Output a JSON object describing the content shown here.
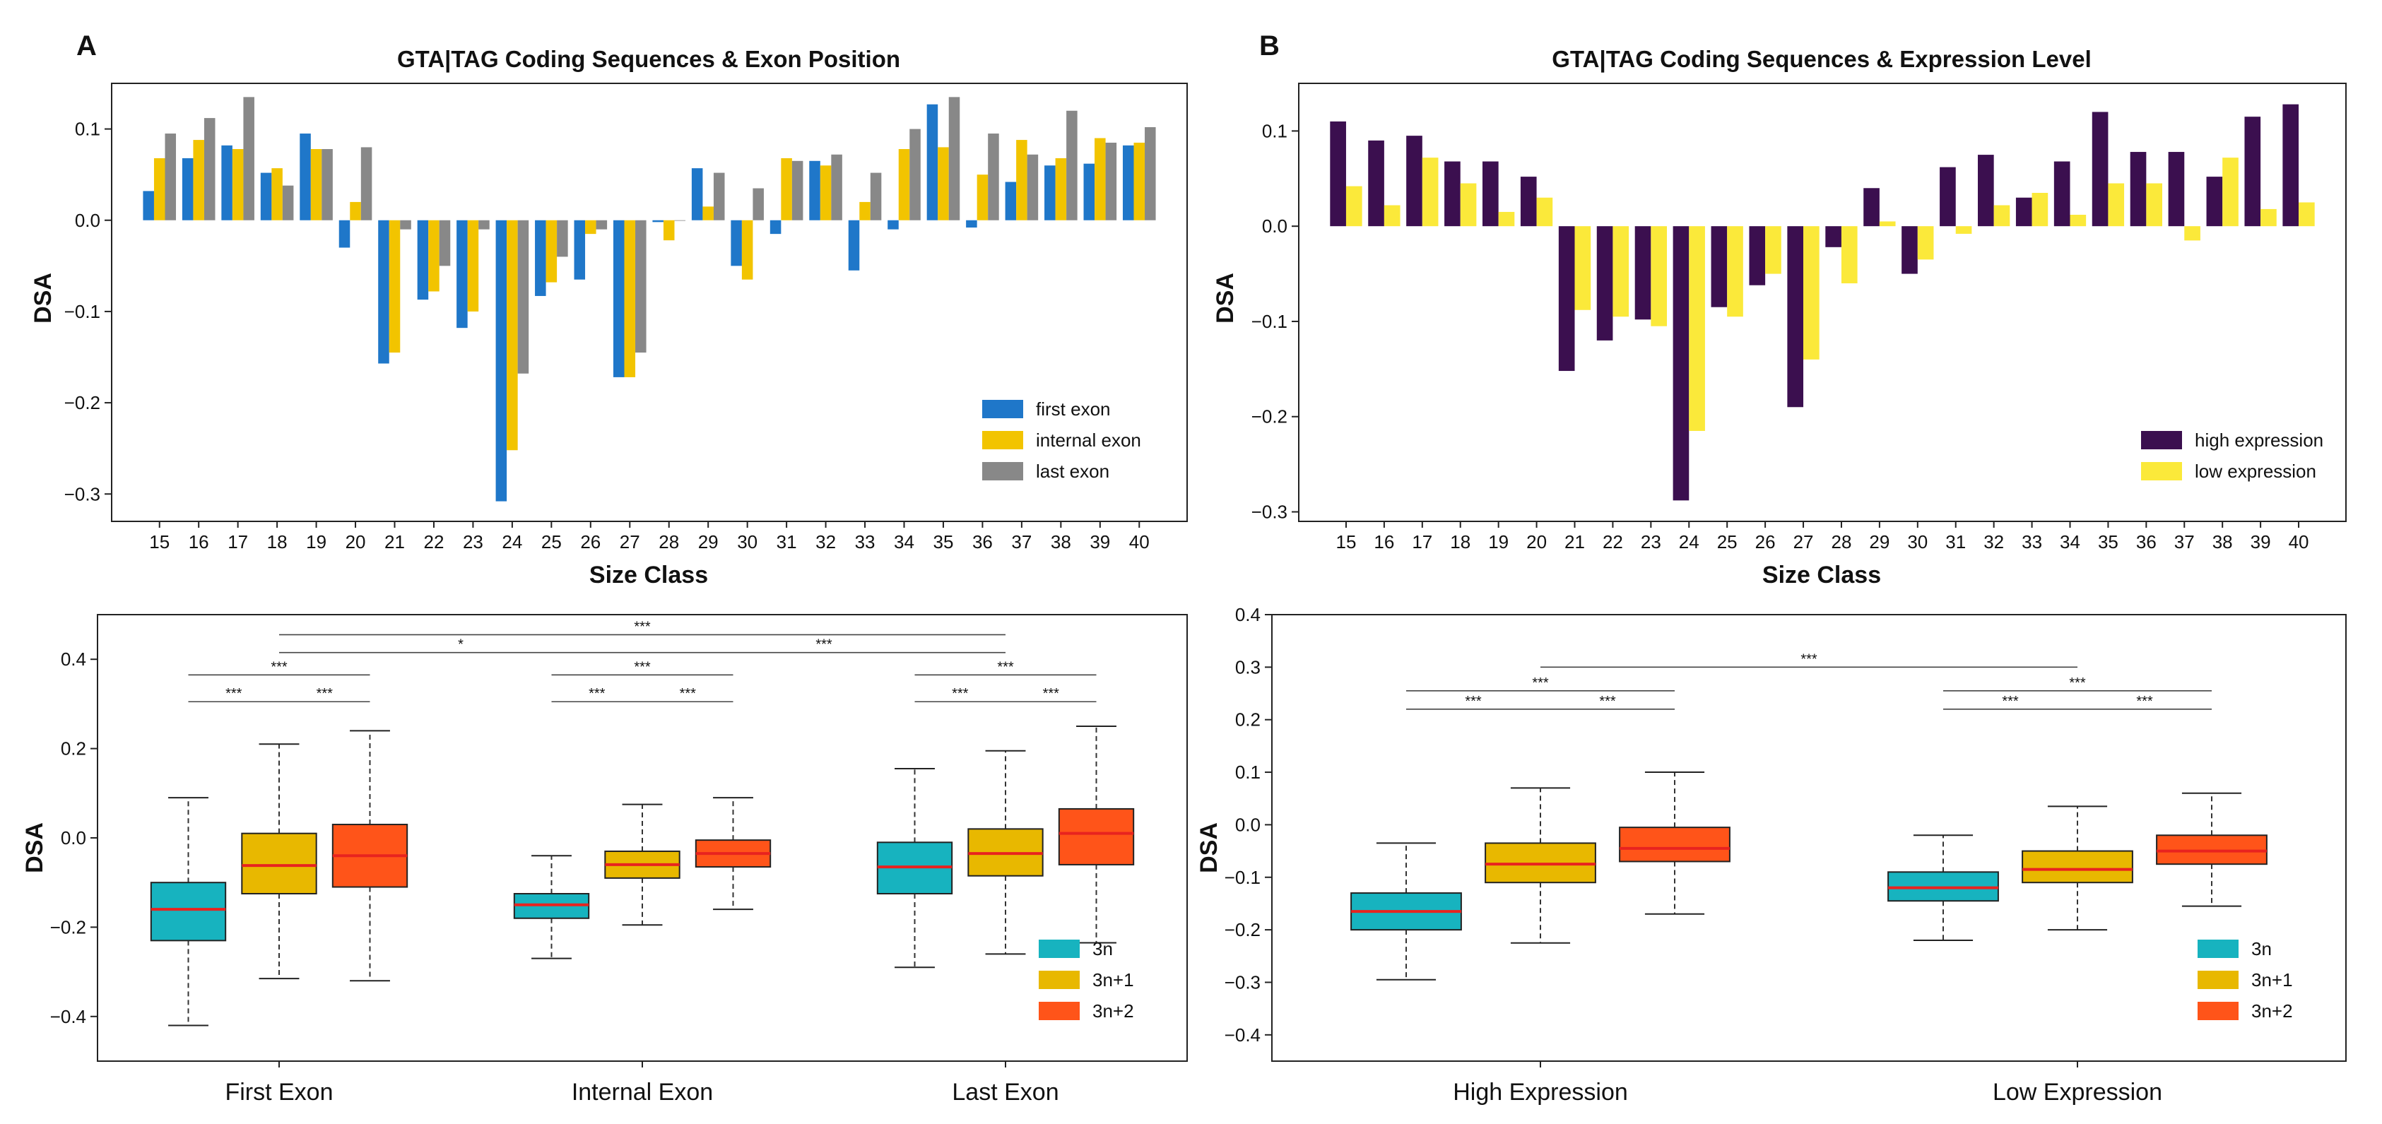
{
  "chart_data": [
    {
      "id": "A_top",
      "type": "bar",
      "panel_label": "A",
      "title": "GTA|TAG Coding Sequences & Exon Position",
      "xlabel": "Size Class",
      "ylabel": "DSA",
      "ylim": [
        -0.33,
        0.15
      ],
      "yticks": [
        0.1,
        0.0,
        -0.1,
        -0.2,
        -0.3
      ],
      "ytick_labels": [
        "0.1",
        "0.0",
        "−0.1",
        "−0.2",
        "−0.3"
      ],
      "legend_position": "bottom-right",
      "categories": [
        "15",
        "16",
        "17",
        "18",
        "19",
        "20",
        "21",
        "22",
        "23",
        "24",
        "25",
        "26",
        "27",
        "28",
        "29",
        "30",
        "31",
        "32",
        "33",
        "34",
        "35",
        "36",
        "37",
        "38",
        "39",
        "40"
      ],
      "series": [
        {
          "name": "first exon",
          "color": "#1f77c9",
          "values": [
            0.032,
            0.068,
            0.082,
            0.052,
            0.095,
            -0.03,
            -0.157,
            -0.087,
            -0.118,
            -0.308,
            -0.083,
            -0.065,
            -0.172,
            -0.002,
            0.057,
            -0.05,
            -0.015,
            0.065,
            -0.055,
            -0.01,
            0.127,
            -0.008,
            0.042,
            0.06,
            0.062,
            0.082
          ]
        },
        {
          "name": "internal exon",
          "color": "#f2c400",
          "values": [
            0.068,
            0.088,
            0.078,
            0.057,
            0.078,
            0.02,
            -0.145,
            -0.078,
            -0.1,
            -0.252,
            -0.068,
            -0.015,
            -0.172,
            -0.022,
            0.015,
            -0.065,
            0.068,
            0.06,
            0.02,
            0.078,
            0.08,
            0.05,
            0.088,
            0.068,
            0.09,
            0.085
          ]
        },
        {
          "name": "last exon",
          "color": "#888888",
          "values": [
            0.095,
            0.112,
            0.135,
            0.038,
            0.078,
            0.08,
            -0.01,
            -0.05,
            -0.01,
            -0.168,
            -0.04,
            -0.01,
            -0.145,
            0.0,
            0.052,
            0.035,
            0.065,
            0.072,
            0.052,
            0.1,
            0.135,
            0.095,
            0.072,
            0.12,
            0.085,
            0.102
          ]
        }
      ]
    },
    {
      "id": "B_top",
      "type": "bar",
      "panel_label": "B",
      "title": "GTA|TAG Coding Sequences & Expression Level",
      "xlabel": "Size Class",
      "ylabel": "DSA",
      "ylim": [
        -0.31,
        0.15
      ],
      "yticks": [
        0.1,
        0.0,
        -0.1,
        -0.2,
        -0.3
      ],
      "ytick_labels": [
        "0.1",
        "0.0",
        "−0.1",
        "−0.2",
        "−0.3"
      ],
      "legend_position": "bottom-right",
      "categories": [
        "15",
        "16",
        "17",
        "18",
        "19",
        "20",
        "21",
        "22",
        "23",
        "24",
        "25",
        "26",
        "27",
        "28",
        "29",
        "30",
        "31",
        "32",
        "33",
        "34",
        "35",
        "36",
        "37",
        "38",
        "39",
        "40"
      ],
      "series": [
        {
          "name": "high expression",
          "color": "#3b0f4f",
          "values": [
            0.11,
            0.09,
            0.095,
            0.068,
            0.068,
            0.052,
            -0.152,
            -0.12,
            -0.098,
            -0.288,
            -0.085,
            -0.062,
            -0.19,
            -0.022,
            0.04,
            -0.05,
            0.062,
            0.075,
            0.03,
            0.068,
            0.12,
            0.078,
            0.078,
            0.052,
            0.115,
            0.128
          ]
        },
        {
          "name": "low expression",
          "color": "#fbe93a",
          "values": [
            0.042,
            0.022,
            0.072,
            0.045,
            0.015,
            0.03,
            -0.088,
            -0.095,
            -0.105,
            -0.215,
            -0.095,
            -0.05,
            -0.14,
            -0.06,
            0.005,
            -0.035,
            -0.008,
            0.022,
            0.035,
            0.012,
            0.045,
            0.045,
            -0.015,
            0.072,
            0.018,
            0.025
          ]
        }
      ]
    },
    {
      "id": "A_bottom",
      "type": "box",
      "ylabel": "DSA",
      "ylim": [
        -0.5,
        0.5
      ],
      "yticks": [
        0.4,
        0.2,
        0.0,
        -0.2,
        -0.4
      ],
      "ytick_labels": [
        "0.4",
        "0.2",
        "0.0",
        "−0.2",
        "−0.4"
      ],
      "legend_position": "bottom-right",
      "legend": [
        {
          "name": "3n",
          "color": "#17b3bf"
        },
        {
          "name": "3n+1",
          "color": "#e8b800"
        },
        {
          "name": "3n+2",
          "color": "#ff5419"
        }
      ],
      "categories": [
        "First Exon",
        "Internal Exon",
        "Last Exon"
      ],
      "boxes": [
        [
          {
            "series": "3n",
            "whislo": -0.42,
            "q1": -0.23,
            "med": -0.16,
            "q3": -0.1,
            "whishi": 0.09
          },
          {
            "series": "3n+1",
            "whislo": -0.315,
            "q1": -0.125,
            "med": -0.062,
            "q3": 0.01,
            "whishi": 0.21
          },
          {
            "series": "3n+2",
            "whislo": -0.32,
            "q1": -0.11,
            "med": -0.04,
            "q3": 0.03,
            "whishi": 0.24
          }
        ],
        [
          {
            "series": "3n",
            "whislo": -0.27,
            "q1": -0.18,
            "med": -0.15,
            "q3": -0.125,
            "whishi": -0.04
          },
          {
            "series": "3n+1",
            "whislo": -0.195,
            "q1": -0.09,
            "med": -0.06,
            "q3": -0.03,
            "whishi": 0.075
          },
          {
            "series": "3n+2",
            "whislo": -0.16,
            "q1": -0.065,
            "med": -0.035,
            "q3": -0.005,
            "whishi": 0.09
          }
        ],
        [
          {
            "series": "3n",
            "whislo": -0.29,
            "q1": -0.125,
            "med": -0.065,
            "q3": -0.01,
            "whishi": 0.155
          },
          {
            "series": "3n+1",
            "whislo": -0.26,
            "q1": -0.085,
            "med": -0.035,
            "q3": 0.02,
            "whishi": 0.195
          },
          {
            "series": "3n+2",
            "whislo": -0.235,
            "q1": -0.06,
            "med": 0.01,
            "q3": 0.065,
            "whishi": 0.25
          }
        ]
      ],
      "significance": [
        {
          "from": [
            0,
            0
          ],
          "to": [
            0,
            1
          ],
          "y": 0.305,
          "label": "***"
        },
        {
          "from": [
            0,
            1
          ],
          "to": [
            0,
            2
          ],
          "y": 0.305,
          "label": "***"
        },
        {
          "from": [
            0,
            0
          ],
          "to": [
            0,
            2
          ],
          "y": 0.365,
          "label": "***"
        },
        {
          "from": [
            1,
            0
          ],
          "to": [
            1,
            1
          ],
          "y": 0.305,
          "label": "***"
        },
        {
          "from": [
            1,
            1
          ],
          "to": [
            1,
            2
          ],
          "y": 0.305,
          "label": "***"
        },
        {
          "from": [
            1,
            0
          ],
          "to": [
            1,
            2
          ],
          "y": 0.365,
          "label": "***"
        },
        {
          "from": [
            2,
            0
          ],
          "to": [
            2,
            1
          ],
          "y": 0.305,
          "label": "***"
        },
        {
          "from": [
            2,
            1
          ],
          "to": [
            2,
            2
          ],
          "y": 0.305,
          "label": "***"
        },
        {
          "from": [
            2,
            0
          ],
          "to": [
            2,
            2
          ],
          "y": 0.365,
          "label": "***"
        },
        {
          "from": [
            0,
            1
          ],
          "to": [
            1,
            1
          ],
          "y": 0.415,
          "label": "*"
        },
        {
          "from": [
            1,
            1
          ],
          "to": [
            2,
            1
          ],
          "y": 0.415,
          "label": "***"
        },
        {
          "from": [
            0,
            1
          ],
          "to": [
            2,
            1
          ],
          "y": 0.455,
          "label": "***"
        }
      ]
    },
    {
      "id": "B_bottom",
      "type": "box",
      "ylabel": "DSA",
      "ylim": [
        -0.45,
        0.4
      ],
      "yticks": [
        0.4,
        0.3,
        0.2,
        0.1,
        0.0,
        -0.1,
        -0.2,
        -0.3,
        -0.4
      ],
      "ytick_labels": [
        "0.4",
        "0.3",
        "0.2",
        "0.1",
        "0.0",
        "−0.1",
        "−0.2",
        "−0.3",
        "−0.4"
      ],
      "legend_position": "bottom-right",
      "legend": [
        {
          "name": "3n",
          "color": "#17b3bf"
        },
        {
          "name": "3n+1",
          "color": "#e8b800"
        },
        {
          "name": "3n+2",
          "color": "#ff5419"
        }
      ],
      "categories": [
        "High Expression",
        "Low Expression"
      ],
      "boxes": [
        [
          {
            "series": "3n",
            "whislo": -0.295,
            "q1": -0.2,
            "med": -0.165,
            "q3": -0.13,
            "whishi": -0.035
          },
          {
            "series": "3n+1",
            "whislo": -0.225,
            "q1": -0.11,
            "med": -0.075,
            "q3": -0.035,
            "whishi": 0.07
          },
          {
            "series": "3n+2",
            "whislo": -0.17,
            "q1": -0.07,
            "med": -0.045,
            "q3": -0.005,
            "whishi": 0.1
          }
        ],
        [
          {
            "series": "3n",
            "whislo": -0.22,
            "q1": -0.145,
            "med": -0.12,
            "q3": -0.09,
            "whishi": -0.02
          },
          {
            "series": "3n+1",
            "whislo": -0.2,
            "q1": -0.11,
            "med": -0.085,
            "q3": -0.05,
            "whishi": 0.035
          },
          {
            "series": "3n+2",
            "whislo": -0.155,
            "q1": -0.075,
            "med": -0.05,
            "q3": -0.02,
            "whishi": 0.06
          }
        ]
      ],
      "significance": [
        {
          "from": [
            0,
            0
          ],
          "to": [
            0,
            1
          ],
          "y": 0.22,
          "label": "***"
        },
        {
          "from": [
            0,
            1
          ],
          "to": [
            0,
            2
          ],
          "y": 0.22,
          "label": "***"
        },
        {
          "from": [
            0,
            0
          ],
          "to": [
            0,
            2
          ],
          "y": 0.255,
          "label": "***"
        },
        {
          "from": [
            1,
            0
          ],
          "to": [
            1,
            1
          ],
          "y": 0.22,
          "label": "***"
        },
        {
          "from": [
            1,
            1
          ],
          "to": [
            1,
            2
          ],
          "y": 0.22,
          "label": "***"
        },
        {
          "from": [
            1,
            0
          ],
          "to": [
            1,
            2
          ],
          "y": 0.255,
          "label": "***"
        },
        {
          "from": [
            0,
            1
          ],
          "to": [
            1,
            1
          ],
          "y": 0.3,
          "label": "***"
        }
      ]
    }
  ]
}
